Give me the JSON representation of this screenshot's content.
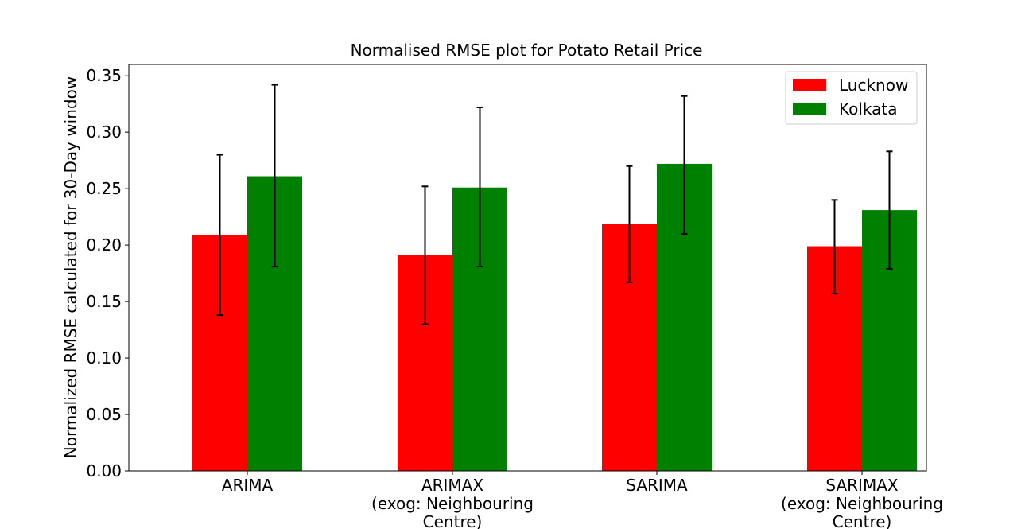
{
  "chart_data": {
    "type": "bar",
    "title": "Normalised RMSE plot for Potato Retail Price",
    "xlabel": "",
    "ylabel": "Normalized RMSE calculated for 30-Day window",
    "ylim": [
      0,
      0.36
    ],
    "yticks": [
      "0.00",
      "0.05",
      "0.10",
      "0.15",
      "0.20",
      "0.25",
      "0.30",
      "0.35"
    ],
    "categories": [
      [
        "ARIMA"
      ],
      [
        "ARIMAX",
        "(exog: Neighbouring",
        "Centre)"
      ],
      [
        "SARIMA"
      ],
      [
        "SARIMAX",
        "(exog: Neighbouring",
        "Centre)"
      ]
    ],
    "series": [
      {
        "name": "Lucknow",
        "color": "#ff0000",
        "values": [
          0.209,
          0.191,
          0.219,
          0.199
        ],
        "error_low": [
          0.138,
          0.13,
          0.167,
          0.157
        ],
        "error_high": [
          0.28,
          0.252,
          0.27,
          0.24
        ]
      },
      {
        "name": "Kolkata",
        "color": "#008000",
        "values": [
          0.261,
          0.251,
          0.272,
          0.231
        ],
        "error_low": [
          0.181,
          0.181,
          0.21,
          0.179
        ],
        "error_high": [
          0.342,
          0.322,
          0.332,
          0.283
        ]
      }
    ],
    "legend": "top-right",
    "grid": false
  }
}
